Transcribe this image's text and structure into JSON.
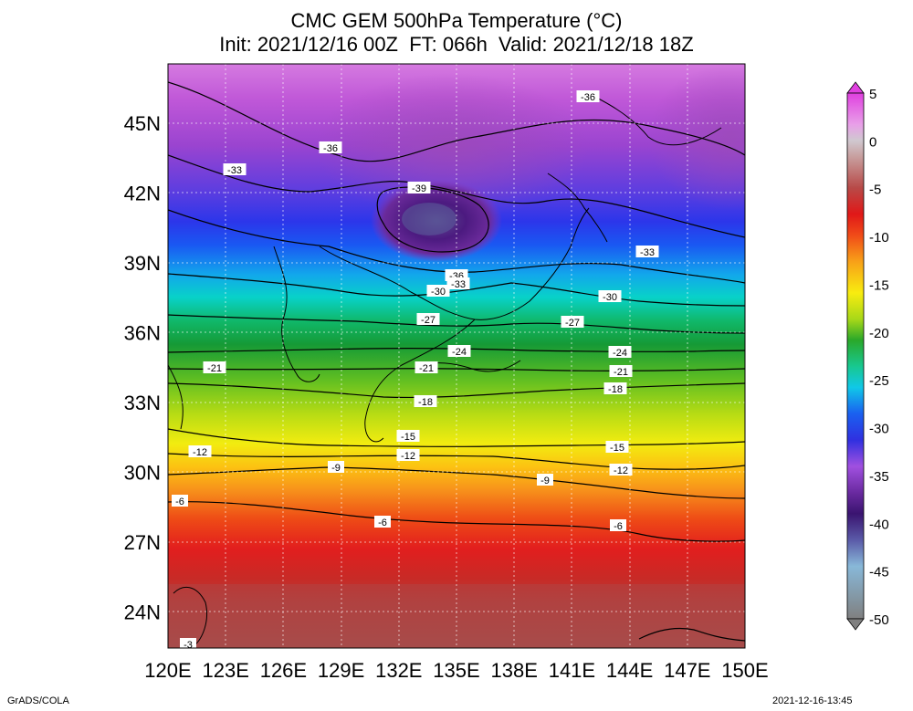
{
  "title": {
    "line1": "CMC GEM 500hPa Temperature (°C)",
    "line2": "Init: 2021/12/16 00Z  FT: 066h  Valid: 2021/12/18 18Z"
  },
  "axes": {
    "lat_labels": [
      "45N",
      "42N",
      "39N",
      "36N",
      "33N",
      "30N",
      "27N",
      "24N"
    ],
    "lat_values": [
      45,
      42,
      39,
      36,
      33,
      30,
      27,
      24
    ],
    "lon_labels": [
      "120E",
      "123E",
      "126E",
      "129E",
      "132E",
      "135E",
      "138E",
      "141E",
      "144E",
      "147E",
      "150E"
    ],
    "lon_values": [
      120,
      123,
      126,
      129,
      132,
      135,
      138,
      141,
      144,
      147,
      150
    ]
  },
  "colorbar": {
    "labels": [
      "5",
      "0",
      "-5",
      "-10",
      "-15",
      "-20",
      "-25",
      "-30",
      "-35",
      "-40",
      "-45",
      "-50"
    ]
  },
  "contour_labels": [
    "-36",
    "-39",
    "-36",
    "-33",
    "-33",
    "-36",
    "-33",
    "-30",
    "-30",
    "-27",
    "-27",
    "-24",
    "-24",
    "-21",
    "-21",
    "-21",
    "-18",
    "-18",
    "-15",
    "-15",
    "-12",
    "-12",
    "-12",
    "-9",
    "-9",
    "-6",
    "-6",
    "-6",
    "-3"
  ],
  "footer": {
    "left": "GrADS/COLA",
    "right": "2021-12-16-13:45"
  }
}
